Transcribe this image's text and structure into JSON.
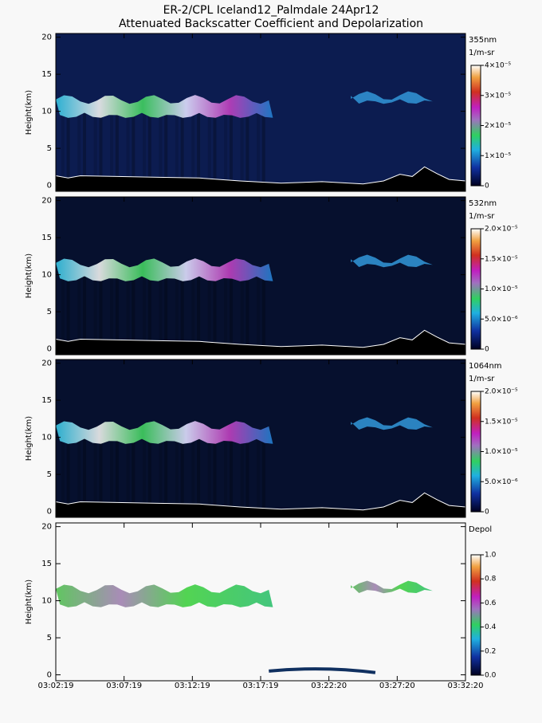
{
  "title": [
    "ER-2/CPL Iceland12_Palmdale 24Apr12",
    "Attenuated Backscatter Coefficient and Depolarization"
  ],
  "chart_data": [
    {
      "type": "curtain",
      "ylabel": "Height(km)",
      "ylim": [
        -0.8,
        20.5
      ],
      "yticks": [
        0,
        5,
        10,
        15,
        20
      ],
      "colorbar": {
        "label": "355nm",
        "units": "1/m-sr",
        "lim": [
          0,
          4e-05
        ],
        "ticks": [
          0,
          {
            "value": 1e-05,
            "label": "1×10⁻⁵"
          },
          {
            "value": 2e-05,
            "label": "2×10⁻⁵"
          },
          {
            "value": 3e-05,
            "label": "3×10⁻⁵"
          },
          {
            "value": 4e-05,
            "label": "4×10⁻⁵"
          }
        ]
      }
    },
    {
      "type": "curtain",
      "ylabel": "Height(km)",
      "ylim": [
        -0.8,
        20.5
      ],
      "yticks": [
        0,
        5,
        10,
        15,
        20
      ],
      "colorbar": {
        "label": "532nm",
        "units": "1/m-sr",
        "lim": [
          0,
          2e-05
        ],
        "ticks": [
          0,
          {
            "value": 5e-06,
            "label": "5.0×10⁻⁶"
          },
          {
            "value": 1e-05,
            "label": "1.0×10⁻⁵"
          },
          {
            "value": 1.5e-05,
            "label": "1.5×10⁻⁵"
          },
          {
            "value": 2e-05,
            "label": "2.0×10⁻⁵"
          }
        ]
      }
    },
    {
      "type": "curtain",
      "ylabel": "Height(km)",
      "ylim": [
        -0.8,
        20.5
      ],
      "yticks": [
        0,
        5,
        10,
        15,
        20
      ],
      "colorbar": {
        "label": "1064nm",
        "units": "1/m-sr",
        "lim": [
          0,
          2e-05
        ],
        "ticks": [
          0,
          {
            "value": 5e-06,
            "label": "5.0×10⁻⁶"
          },
          {
            "value": 1e-05,
            "label": "1.0×10⁻⁵"
          },
          {
            "value": 1.5e-05,
            "label": "1.5×10⁻⁵"
          },
          {
            "value": 2e-05,
            "label": "2.0×10⁻⁵"
          }
        ]
      }
    },
    {
      "type": "curtain",
      "ylabel": "Height(km)",
      "ylim": [
        -0.8,
        20.5
      ],
      "yticks": [
        0,
        5,
        10,
        15,
        20
      ],
      "colorbar": {
        "label": "Depol",
        "lim": [
          0,
          1
        ],
        "ticks": [
          {
            "value": 0,
            "label": "0.0"
          },
          {
            "value": 0.2,
            "label": "0.2"
          },
          {
            "value": 0.4,
            "label": "0.4"
          },
          {
            "value": 0.6,
            "label": "0.6"
          },
          {
            "value": 0.8,
            "label": "0.8"
          },
          {
            "value": 1,
            "label": "1.0"
          }
        ]
      },
      "xticks": [
        "03:02:19",
        "03:07:19",
        "03:12:19",
        "03:17:19",
        "03:22:20",
        "03:27:20",
        "03:32:20"
      ]
    }
  ]
}
